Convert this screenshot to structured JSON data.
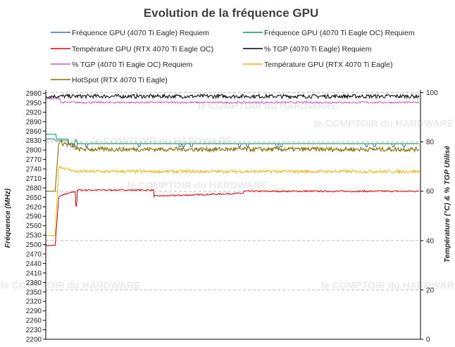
{
  "chart_data": {
    "type": "line",
    "title": "Evolution de la fréquence GPU",
    "ylabel_left": "Fréquence (MHz)",
    "ylabel_right": "Température (°C) & % TGP Utilisé",
    "ylim_left": [
      2200,
      2990
    ],
    "ylim_right": [
      0,
      101
    ],
    "left_ticks": [
      2200,
      2230,
      2260,
      2290,
      2320,
      2350,
      2380,
      2410,
      2440,
      2470,
      2500,
      2530,
      2560,
      2590,
      2620,
      2650,
      2680,
      2710,
      2740,
      2770,
      2800,
      2830,
      2860,
      2890,
      2920,
      2950,
      2980
    ],
    "right_ticks": [
      0,
      20,
      40,
      60,
      80,
      100
    ],
    "grid": "horizontal dashed at right-axis ticks",
    "legend_position": "top",
    "watermark": [
      "le COMPTOIR du HARDWARE"
    ],
    "series": [
      {
        "name": "Fréquence GPU (4070 Ti Eagle) Requiem",
        "axis": "left",
        "color": "#2e75b6",
        "values_desc": "starts ~2835, settles ~2820 with dips to ~2810",
        "start": 2835,
        "level": 2820
      },
      {
        "name": "Fréquence GPU (4070 Ti Eagle OC) Requiem",
        "axis": "left",
        "color": "#00a050",
        "start": 2850,
        "level": 2820
      },
      {
        "name": "Température GPU (RTX 4070 Ti Eagle OC)",
        "axis": "right",
        "color": "#e00000",
        "start": 38,
        "level1": 60.5,
        "level2": 58,
        "level3": 60
      },
      {
        "name": "% TGP (4070 Ti Eagle) Requiem",
        "axis": "right",
        "color": "#000000",
        "level": 98.5
      },
      {
        "name": "% TGP (4070 Ti Eagle OC) Requiem",
        "axis": "right",
        "color": "#c060c0",
        "level": 96
      },
      {
        "name": "Température GPU (RTX 4070 Ti Eagle)",
        "axis": "right",
        "color": "#f0b400",
        "start": 42,
        "peak": 70,
        "level": 68
      },
      {
        "name": "HotSpot (RTX 4070 Ti Eagle)",
        "axis": "right",
        "color": "#8a6d00",
        "start": 60,
        "peak": 80,
        "level": 77
      }
    ]
  },
  "colors": {
    "grid": "#bfbfbf",
    "axis": "#000000",
    "title": "#404040"
  }
}
